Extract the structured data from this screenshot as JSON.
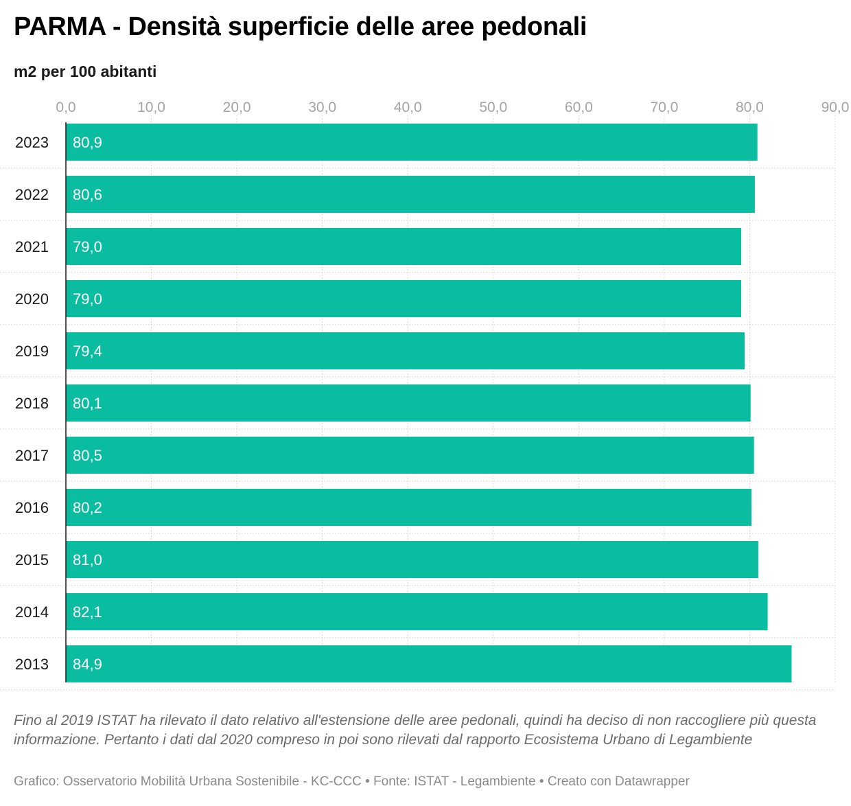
{
  "header": {
    "title": "PARMA - Densità superficie delle aree pedonali",
    "subtitle": "m2 per 100 abitanti"
  },
  "colors": {
    "bar": "#0bbda0",
    "axis": "#1a1a1a",
    "grid": "#d9d9d9"
  },
  "chart_data": {
    "type": "bar",
    "orientation": "horizontal",
    "title": "PARMA - Densità superficie delle aree pedonali",
    "subtitle": "m2 per 100 abitanti",
    "categories": [
      "2023",
      "2022",
      "2021",
      "2020",
      "2019",
      "2018",
      "2017",
      "2016",
      "2015",
      "2014",
      "2013"
    ],
    "values": [
      80.9,
      80.6,
      79.0,
      79.0,
      79.4,
      80.1,
      80.5,
      80.2,
      81.0,
      82.1,
      84.9
    ],
    "value_labels": [
      "80,9",
      "80,6",
      "79,0",
      "79,0",
      "79,4",
      "80,1",
      "80,5",
      "80,2",
      "81,0",
      "82,1",
      "84,9"
    ],
    "xticks": [
      0,
      10,
      20,
      30,
      40,
      50,
      60,
      70,
      80,
      90
    ],
    "xtick_labels": [
      "0,0",
      "10,0",
      "20,0",
      "30,0",
      "40,0",
      "50,0",
      "60,0",
      "70,0",
      "80,0",
      "90,0"
    ],
    "xlim": [
      0,
      90
    ],
    "xaxis_position": "top",
    "grid": true
  },
  "footer": {
    "note": "Fino al 2019 ISTAT ha rilevato il dato relativo all'estensione delle aree pedonali, quindi ha deciso di non raccogliere più questa informazione. Pertanto i dati dal 2020 compreso in poi sono rilevati dal rapporto Ecosistema Urbano di Legambiente",
    "credits": "Grafico: Osservatorio Mobilità Urbana Sostenibile - KC-CCC • Fonte: ISTAT - Legambiente • Creato con Datawrapper"
  }
}
